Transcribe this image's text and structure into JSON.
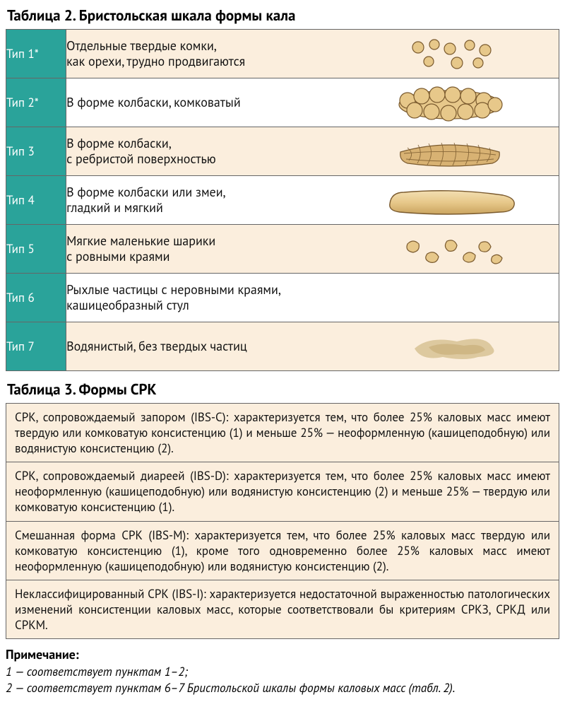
{
  "table2": {
    "title": "Таблица 2. Бристольская шкала формы кала",
    "rows": [
      {
        "type": "Тип 1*",
        "desc": "Отдельные твердые комки,\nкак орехи, трудно продвигаются",
        "shape": "type1"
      },
      {
        "type": "Тип 2*",
        "desc": "В форме колбаски, комковатый",
        "shape": "type2"
      },
      {
        "type": "Тип 3",
        "desc": "В форме колбаски,\nс ребристой поверхностью",
        "shape": "type3"
      },
      {
        "type": "Тип 4",
        "desc": "В форме колбаски или змеи,\nгладкий и мягкий",
        "shape": "type4"
      },
      {
        "type": "Тип 5",
        "desc": "Мягкие маленькие шарики\nс ровными краями",
        "shape": "type5"
      },
      {
        "type": "Тип 6",
        "desc": "Рыхлые частицы с неровными краями, кашицеобразный стул",
        "shape": "type6"
      },
      {
        "type": "Тип 7",
        "desc": "Водянистый, без твердых частиц",
        "shape": "type7"
      }
    ],
    "colors": {
      "type_bg": "#2aa39a",
      "type_text": "#ffffff",
      "alt_row_bg": "#fbeedd",
      "plain_row_bg": "#ffffff",
      "border": "#666666",
      "stool_fill": "#e7c88a",
      "stool_fill_light": "#ead9b4",
      "stool_stroke": "#7a5a2e"
    }
  },
  "table3": {
    "title": "Таблица 3. Формы СРК",
    "rows": [
      "СРК, сопровождаемый запором (IBS-C): характеризуется тем, что более 25% каловых масс имеют твердую или комковатую консистенцию (1) и меньше 25% — неоформленную (кашицеподобную) или водянистую консистенцию (2).",
      "СРК, сопровождаемый диареей (IBS-D): характеризуется тем, что более 25% каловых масс имеют неоформленную (кашицеподобную) или водянистую консистенцию (2) и меньше 25% — твердую или комковатую консистенцию (1).",
      "Смешанная форма СРК (IBS-M): характеризуется тем, что более 25% каловых масс твердую или комковатую консистенцию (1), кроме того одновременно более 25% каловых масс имеют неоформленную (кашицеподобную) или водянистую консистенцию (2).",
      "Неклассифицированный СРК (IBS-I): характеризуется недостаточной выраженностью патологических изменений консистенции каловых масс, которые соответствовали бы критериям СРКЗ, СРКД или СРКМ."
    ]
  },
  "notes": {
    "heading": "Примечание:",
    "line1": "1 — соответствует пунктам 1–2;",
    "line2": "2 — соответствует пунктам 6–7 Бристольской шкалы формы каловых масс (табл. 2)."
  }
}
